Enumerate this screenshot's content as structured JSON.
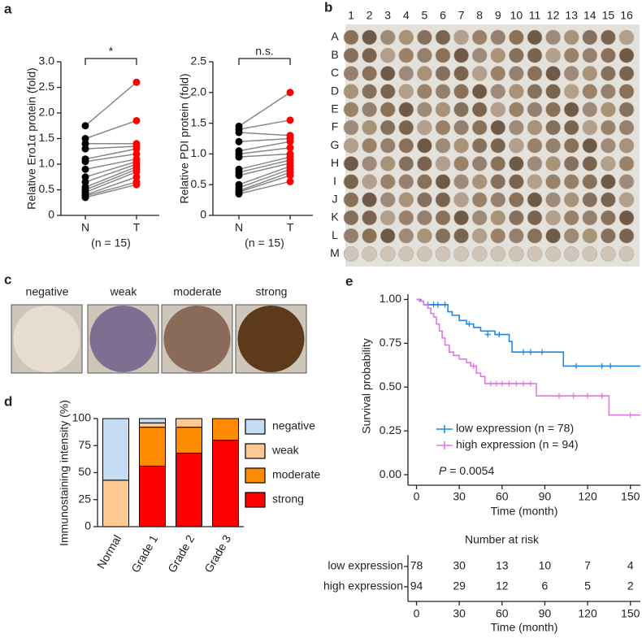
{
  "chart_data": [
    {
      "type": "paired_dot",
      "panel": "a",
      "ylabel": "Relative Ero1α protein (fold)",
      "significance": "*",
      "note": "(n = 15)",
      "ylim": [
        0,
        3.0
      ],
      "yticks": [
        0,
        0.5,
        {
          "value": 1,
          "label": "1.0"
        },
        1.5,
        {
          "value": 2,
          "label": "2.0"
        },
        2.5,
        {
          "value": 3,
          "label": "3.0"
        }
      ],
      "groups": [
        {
          "label": "N",
          "color": "#000000",
          "values": [
            1.75,
            1.5,
            1.4,
            1.3,
            1.1,
            1.05,
            0.9,
            0.75,
            0.65,
            0.55,
            0.5,
            0.45,
            0.4,
            0.38,
            0.35
          ]
        },
        {
          "label": "T",
          "color": "#ff0000",
          "values": [
            2.6,
            1.85,
            1.4,
            1.35,
            1.3,
            1.2,
            1.1,
            1.05,
            1.0,
            0.95,
            0.9,
            0.85,
            0.75,
            0.65,
            0.6
          ]
        }
      ]
    },
    {
      "type": "paired_dot",
      "ylabel": "Relative PDI protein (fold)",
      "significance": "n.s.",
      "note": "(n = 15)",
      "ylim": [
        0,
        2.5
      ],
      "yticks": [
        0,
        0.5,
        {
          "value": 1,
          "label": "1.0"
        },
        1.5,
        {
          "value": 2,
          "label": "2.0"
        },
        2.5
      ],
      "groups": [
        {
          "label": "N",
          "color": "#000000",
          "values": [
            1.45,
            1.4,
            1.35,
            1.2,
            1.05,
            1.0,
            0.95,
            0.75,
            0.7,
            0.65,
            0.5,
            0.45,
            0.4,
            0.38,
            0.35
          ]
        },
        {
          "label": "T",
          "color": "#ff0000",
          "values": [
            2.0,
            1.55,
            1.3,
            1.25,
            1.2,
            1.1,
            1.0,
            0.95,
            0.9,
            0.85,
            0.8,
            0.75,
            0.7,
            0.65,
            0.55
          ]
        }
      ]
    },
    {
      "type": "tissue_array",
      "panel": "b",
      "columns": [
        "1",
        "2",
        "3",
        "4",
        "5",
        "6",
        "7",
        "8",
        "9",
        "10",
        "11",
        "12",
        "13",
        "14",
        "15",
        "16"
      ],
      "rows": [
        "A",
        "B",
        "C",
        "D",
        "E",
        "F",
        "G",
        "H",
        "I",
        "J",
        "K",
        "L",
        "M"
      ]
    },
    {
      "type": "ihc_examples",
      "panel": "c",
      "labels": [
        "negative",
        "weak",
        "moderate",
        "strong"
      ]
    },
    {
      "type": "stacked_bar",
      "panel": "d",
      "ylabel": "Immunostaining intensity (%)",
      "categories": [
        "Normal",
        "Grade 1",
        "Grade 2",
        "Grade 3"
      ],
      "ylim": [
        0,
        100
      ],
      "yticks": [
        0,
        25,
        50,
        75,
        100
      ],
      "series": [
        {
          "name": "negative",
          "color": "#c6dcf2",
          "values": [
            57,
            4,
            0,
            0
          ]
        },
        {
          "name": "weak",
          "color": "#fdc891",
          "values": [
            43,
            4,
            8,
            0
          ]
        },
        {
          "name": "moderate",
          "color": "#ff8c00",
          "values": [
            0,
            36,
            24,
            20
          ]
        },
        {
          "name": "strong",
          "color": "#ff0000",
          "values": [
            0,
            56,
            68,
            80
          ]
        }
      ]
    },
    {
      "type": "survival",
      "panel": "e",
      "ylabel": "Survival probability",
      "xlabel": "Time (month)",
      "p_symbol": "P",
      "p_text": "= 0.0054",
      "xlim": [
        -6,
        157
      ],
      "xticks": [
        0,
        30,
        60,
        90,
        120,
        150
      ],
      "ylim": [
        -0.06,
        1.03
      ],
      "yticks": [
        {
          "value": 0,
          "label": "0.00"
        },
        {
          "value": 0.25,
          "label": "0.25"
        },
        {
          "value": 0.5,
          "label": "0.50"
        },
        {
          "value": 0.75,
          "label": "0.75"
        },
        {
          "value": 1,
          "label": "1.00"
        }
      ],
      "series": [
        {
          "name": "low expression (n = 78)",
          "color": "#1e88e5",
          "x": [
            0,
            3,
            5,
            22,
            25,
            30,
            35,
            40,
            45,
            55,
            65,
            67,
            103,
            157
          ],
          "values": [
            1.0,
            0.99,
            0.97,
            0.93,
            0.91,
            0.88,
            0.86,
            0.84,
            0.82,
            0.8,
            0.76,
            0.7,
            0.62,
            0.62
          ],
          "censored": {
            "x": [
              8,
              12,
              15,
              20,
              37,
              50,
              58,
              75,
              80,
              88,
              112,
              130,
              136
            ],
            "values": [
              0.97,
              0.97,
              0.97,
              0.97,
              0.86,
              0.8,
              0.8,
              0.7,
              0.7,
              0.7,
              0.62,
              0.62,
              0.62
            ]
          }
        },
        {
          "name": "high expression (n = 94)",
          "color": "#e377e3",
          "x": [
            0,
            2,
            5,
            8,
            10,
            12,
            14,
            16,
            18,
            20,
            23,
            26,
            30,
            35,
            38,
            42,
            45,
            48,
            84,
            135,
            157
          ],
          "values": [
            1.0,
            0.99,
            0.97,
            0.95,
            0.92,
            0.9,
            0.86,
            0.82,
            0.78,
            0.74,
            0.7,
            0.68,
            0.66,
            0.64,
            0.62,
            0.58,
            0.56,
            0.52,
            0.45,
            0.34,
            0.34
          ],
          "censored": {
            "x": [
              40,
              52,
              56,
              60,
              65,
              70,
              75,
              80,
              100,
              110,
              120,
              130,
              150
            ],
            "values": [
              0.62,
              0.52,
              0.52,
              0.52,
              0.52,
              0.52,
              0.52,
              0.52,
              0.45,
              0.45,
              0.45,
              0.45,
              0.34
            ]
          }
        }
      ],
      "risk_table": {
        "title": "Number at risk",
        "xlabel": "Time (month)",
        "rows": [
          {
            "label": "low expression",
            "values": [
              78,
              30,
              13,
              10,
              7,
              4
            ]
          },
          {
            "label": "high expression",
            "values": [
              94,
              29,
              12,
              6,
              5,
              2
            ]
          }
        ]
      }
    }
  ]
}
